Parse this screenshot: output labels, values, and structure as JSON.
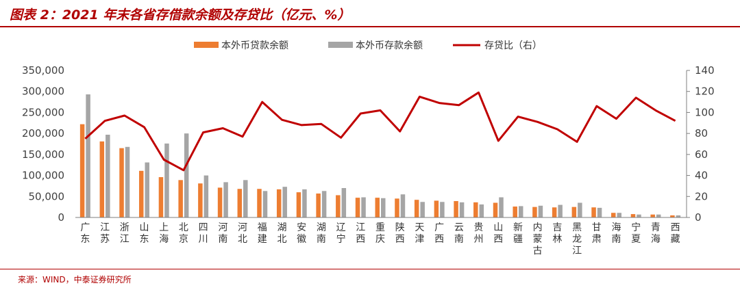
{
  "header": {
    "title": "图表 2：2021 年末各省存借款余额及存贷比（亿元、%）"
  },
  "footer": {
    "source": "来源：WIND，中泰证券研究所"
  },
  "colors": {
    "brand_red": "#b00000",
    "loan_bar": "#ed7d31",
    "deposit_bar": "#a5a5a5",
    "ratio_line": "#c00000"
  },
  "chart_data": {
    "type": "bar",
    "categories": [
      "广东",
      "江苏",
      "浙江",
      "山东",
      "上海",
      "北京",
      "四川",
      "河南",
      "河北",
      "福建",
      "湖北",
      "安徽",
      "湖南",
      "辽宁",
      "江西",
      "重庆",
      "陕西",
      "天津",
      "广西",
      "云南",
      "贵州",
      "山西",
      "新疆",
      "内蒙古",
      "吉林",
      "黑龙江",
      "甘肃",
      "海南",
      "宁夏",
      "青海",
      "西藏"
    ],
    "series": [
      {
        "name": "本外币贷款余额",
        "type": "bar",
        "axis": "left",
        "color": "#ed7d31",
        "values": [
          222000,
          181000,
          165000,
          111000,
          96000,
          89000,
          81000,
          71000,
          68000,
          68000,
          67000,
          60000,
          57000,
          53000,
          47000,
          47000,
          45000,
          42000,
          40000,
          39000,
          36000,
          35000,
          26000,
          25000,
          24000,
          25000,
          24000,
          11000,
          8000,
          7000,
          5000
        ]
      },
      {
        "name": "本外币存款余额",
        "type": "bar",
        "axis": "left",
        "color": "#a5a5a5",
        "values": [
          293000,
          197000,
          168000,
          131000,
          176000,
          200000,
          100000,
          84000,
          89000,
          63000,
          73000,
          67000,
          63000,
          70000,
          48000,
          46000,
          55000,
          37000,
          37000,
          36000,
          31000,
          48000,
          27000,
          28000,
          30000,
          35000,
          23000,
          11000,
          7000,
          7000,
          5000
        ]
      },
      {
        "name": "存贷比（右）",
        "type": "line",
        "axis": "right",
        "color": "#c00000",
        "values": [
          75,
          92,
          97,
          86,
          55,
          45,
          81,
          85,
          77,
          110,
          93,
          88,
          89,
          76,
          99,
          102,
          82,
          115,
          109,
          107,
          119,
          73,
          96,
          91,
          84,
          72,
          106,
          94,
          114,
          102,
          92
        ]
      }
    ],
    "y_left": {
      "min": 0,
      "max": 350000,
      "step": 50000
    },
    "y_right": {
      "min": 0,
      "max": 140,
      "step": 20
    },
    "xlabel": "",
    "ylabel": "",
    "grid": false,
    "legend_position": "top-center"
  }
}
